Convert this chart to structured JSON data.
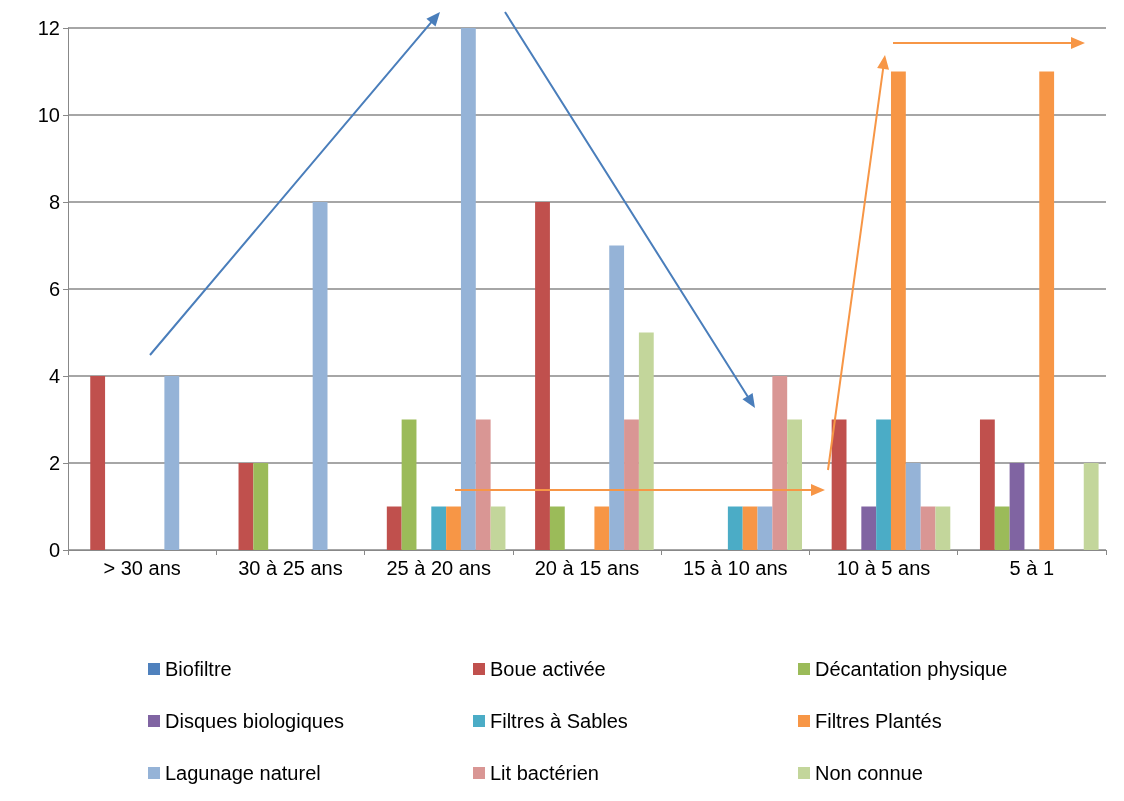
{
  "chart_data": {
    "type": "bar",
    "categories": [
      "> 30 ans",
      "30 à 25 ans",
      "25 à 20 ans",
      "20 à 15 ans",
      "15 à 10 ans",
      "10 à 5 ans",
      "5 à 1"
    ],
    "series": [
      {
        "name": "Biofiltre",
        "color": "#4f81bd",
        "values": [
          0,
          0,
          0,
          0,
          0,
          0,
          0
        ]
      },
      {
        "name": "Boue activée",
        "color": "#c0504d",
        "values": [
          4,
          2,
          1,
          8,
          0,
          3,
          3
        ]
      },
      {
        "name": "Décantation physique",
        "color": "#9bbb59",
        "values": [
          0,
          2,
          3,
          1,
          0,
          0,
          1
        ]
      },
      {
        "name": "Disques biologiques",
        "color": "#8064a2",
        "values": [
          0,
          0,
          0,
          0,
          0,
          1,
          2
        ]
      },
      {
        "name": "Filtres à Sables",
        "color": "#4bacc6",
        "values": [
          0,
          0,
          1,
          0,
          1,
          3,
          0
        ]
      },
      {
        "name": "Filtres Plantés",
        "color": "#f79646",
        "values": [
          0,
          0,
          1,
          1,
          1,
          11,
          11
        ]
      },
      {
        "name": "Lagunage naturel",
        "color": "#95b3d7",
        "values": [
          4,
          8,
          12,
          7,
          1,
          2,
          0
        ]
      },
      {
        "name": "Lit bactérien",
        "color": "#d99694",
        "values": [
          0,
          0,
          3,
          3,
          4,
          1,
          0
        ]
      },
      {
        "name": "Non connue",
        "color": "#c3d69b",
        "values": [
          0,
          0,
          1,
          5,
          3,
          1,
          2
        ]
      }
    ],
    "ylim": [
      0,
      12
    ],
    "yticks": [
      0,
      2,
      4,
      6,
      8,
      10,
      12
    ],
    "grid": "y",
    "legend": "bottom"
  }
}
